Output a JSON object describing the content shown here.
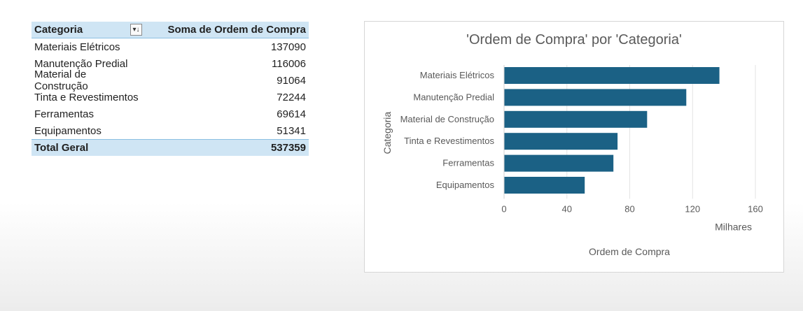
{
  "pivot": {
    "header": {
      "row_label": "Categoria",
      "measure_label": "Soma de Ordem de Compra",
      "filter_icon": "sort-filter-icon"
    },
    "rows": [
      {
        "label": "Materiais Elétricos",
        "value": "137090"
      },
      {
        "label": "Manutenção Predial",
        "value": "116006"
      },
      {
        "label": "Material de Construção",
        "value": "91064"
      },
      {
        "label": "Tinta e Revestimentos",
        "value": "72244"
      },
      {
        "label": "Ferramentas",
        "value": "69614"
      },
      {
        "label": "Equipamentos",
        "value": "51341"
      }
    ],
    "total": {
      "label": "Total Geral",
      "value": "537359"
    }
  },
  "chart_data": {
    "type": "bar",
    "orientation": "horizontal",
    "title": "'Ordem de Compra' por 'Categoria'",
    "xlabel": "Ordem de Compra",
    "ylabel": "Categoria",
    "display_units": "Milhares",
    "categories": [
      "Materiais Elétricos",
      "Manutenção Predial",
      "Material de Construção",
      "Tinta e Revestimentos",
      "Ferramentas",
      "Equipamentos"
    ],
    "values": [
      137090,
      116006,
      91064,
      72244,
      69614,
      51341
    ],
    "xlim": [
      0,
      160000
    ],
    "ticks": [
      "0",
      "40",
      "80",
      "120",
      "160"
    ],
    "tick_values": [
      0,
      40000,
      80000,
      120000,
      160000
    ],
    "bar_color": "#1b6185",
    "grid": "vertical",
    "legend": "none"
  }
}
